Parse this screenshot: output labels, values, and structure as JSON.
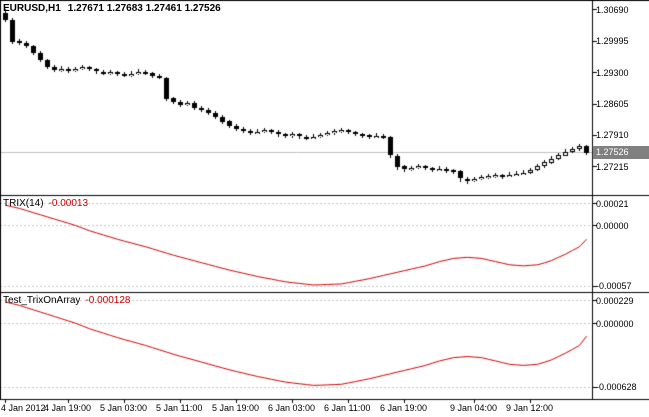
{
  "main_chart": {
    "title_symbol": "EURUSD,H1",
    "title_ohlc": "1.27671 1.27683 1.27461 1.27526",
    "current_price_label": "1.27526",
    "y_labels": [
      "1.30690",
      "1.29995",
      "1.29300",
      "1.28605",
      "1.27910",
      "1.27215"
    ]
  },
  "trix_panel": {
    "title": "TRIX(14)",
    "value": "-0.00013",
    "y_labels": [
      "0.00021",
      "0.00000",
      "-0.00057"
    ]
  },
  "trix_array_panel": {
    "title": "Test_TrixOnArray",
    "value": "-0.000128",
    "y_labels": [
      "0.000229",
      "0.000000",
      "-0.000628"
    ]
  },
  "time_axis": {
    "labels": [
      "4 Jan 2012",
      "4 Jan 19:00",
      "5 Jan 03:00",
      "5 Jan 11:00",
      "5 Jan 19:00",
      "6 Jan 03:00",
      "6 Jan 11:00",
      "6 Jan 19:00",
      "9 Jan 04:00",
      "9 Jan 12:00"
    ]
  },
  "colors": {
    "indicator_line": "#cc0000",
    "price_line": "#c0c0c0",
    "price_tag_bg": "#808080",
    "price_tag_text": "#ffffff",
    "grid_dash": "#c8c8c8",
    "bear_body": "#000000",
    "bull_body": "#ffffff",
    "axis_text": "#000000",
    "border": "#000000"
  },
  "chart_data": [
    {
      "type": "candlestick",
      "title": "EURUSD,H1",
      "period": "H1",
      "ohlc_current": {
        "open": 1.27671,
        "high": 1.27683,
        "low": 1.27461,
        "close": 1.27526
      },
      "current_price": 1.27526,
      "ylim": [
        1.26576,
        1.30878
      ],
      "y_ticks": [
        1.3069,
        1.29995,
        1.293,
        1.28605,
        1.2791,
        1.27215
      ],
      "x_labels": [
        "4 Jan 2012",
        "4 Jan 19:00",
        "5 Jan 03:00",
        "5 Jan 11:00",
        "5 Jan 19:00",
        "6 Jan 03:00",
        "6 Jan 11:00",
        "6 Jan 19:00",
        "9 Jan 04:00",
        "9 Jan 12:00"
      ],
      "x_label_bars": [
        0,
        9,
        17,
        25,
        33,
        41,
        49,
        57,
        67,
        75
      ],
      "candles": [
        [
          1.3062,
          1.3069,
          1.3042,
          1.3046
        ],
        [
          1.3046,
          1.305,
          1.2993,
          1.2998
        ],
        [
          1.2998,
          1.3003,
          1.299,
          1.2994
        ],
        [
          1.2994,
          1.2998,
          1.2984,
          1.2988
        ],
        [
          1.2988,
          1.2991,
          1.2968,
          1.2972
        ],
        [
          1.2972,
          1.2976,
          1.2952,
          1.2956
        ],
        [
          1.2956,
          1.296,
          1.2937,
          1.2941
        ],
        [
          1.2941,
          1.2946,
          1.2931,
          1.2935
        ],
        [
          1.2935,
          1.2943,
          1.2931,
          1.2938
        ],
        [
          1.2938,
          1.2942,
          1.2929,
          1.2933
        ],
        [
          1.2933,
          1.2942,
          1.293,
          1.2937
        ],
        [
          1.2937,
          1.2946,
          1.2934,
          1.2941
        ],
        [
          1.2941,
          1.2944,
          1.2932,
          1.2936
        ],
        [
          1.2936,
          1.294,
          1.2927,
          1.2931
        ],
        [
          1.2931,
          1.2935,
          1.2923,
          1.2927
        ],
        [
          1.2927,
          1.2935,
          1.2924,
          1.293
        ],
        [
          1.293,
          1.2933,
          1.2922,
          1.2926
        ],
        [
          1.2926,
          1.293,
          1.2919,
          1.2923
        ],
        [
          1.2923,
          1.2932,
          1.292,
          1.2927
        ],
        [
          1.2927,
          1.2936,
          1.2924,
          1.2931
        ],
        [
          1.2931,
          1.2934,
          1.2924,
          1.2928
        ],
        [
          1.2928,
          1.2931,
          1.2918,
          1.2922
        ],
        [
          1.2922,
          1.2926,
          1.2914,
          1.2918
        ],
        [
          1.2918,
          1.292,
          1.2865,
          1.2872
        ],
        [
          1.2872,
          1.2876,
          1.2859,
          1.2864
        ],
        [
          1.2864,
          1.2868,
          1.2853,
          1.2858
        ],
        [
          1.2858,
          1.2867,
          1.2855,
          1.2862
        ],
        [
          1.2862,
          1.2865,
          1.2846,
          1.2851
        ],
        [
          1.2851,
          1.2855,
          1.2841,
          1.2846
        ],
        [
          1.2846,
          1.285,
          1.2835,
          1.284
        ],
        [
          1.284,
          1.2844,
          1.2826,
          1.2831
        ],
        [
          1.2831,
          1.2835,
          1.2816,
          1.2821
        ],
        [
          1.2821,
          1.2825,
          1.2806,
          1.2811
        ],
        [
          1.2811,
          1.2815,
          1.2799,
          1.2804
        ],
        [
          1.2804,
          1.2809,
          1.2794,
          1.2799
        ],
        [
          1.2799,
          1.2803,
          1.279,
          1.2795
        ],
        [
          1.2795,
          1.2803,
          1.2792,
          1.2798
        ],
        [
          1.2798,
          1.2806,
          1.2795,
          1.2801
        ],
        [
          1.2801,
          1.2804,
          1.2792,
          1.2797
        ],
        [
          1.2797,
          1.2801,
          1.2787,
          1.2792
        ],
        [
          1.2792,
          1.2796,
          1.2783,
          1.2788
        ],
        [
          1.2788,
          1.2797,
          1.2785,
          1.2792
        ],
        [
          1.2792,
          1.2795,
          1.2782,
          1.2787
        ],
        [
          1.2787,
          1.2791,
          1.2779,
          1.2784
        ],
        [
          1.2784,
          1.2792,
          1.2781,
          1.2787
        ],
        [
          1.2787,
          1.2796,
          1.2784,
          1.2791
        ],
        [
          1.2791,
          1.2799,
          1.2788,
          1.2794
        ],
        [
          1.2794,
          1.2803,
          1.2791,
          1.2799
        ],
        [
          1.2799,
          1.2806,
          1.2796,
          1.2802
        ],
        [
          1.2802,
          1.2805,
          1.2792,
          1.2797
        ],
        [
          1.2797,
          1.28,
          1.2788,
          1.2793
        ],
        [
          1.2793,
          1.2796,
          1.2785,
          1.279
        ],
        [
          1.279,
          1.2793,
          1.2782,
          1.2787
        ],
        [
          1.2787,
          1.2795,
          1.2784,
          1.2789
        ],
        [
          1.2789,
          1.2792,
          1.2781,
          1.2786
        ],
        [
          1.2786,
          1.2788,
          1.2739,
          1.2745
        ],
        [
          1.2745,
          1.2748,
          1.2713,
          1.2721
        ],
        [
          1.2721,
          1.2725,
          1.2708,
          1.2714
        ],
        [
          1.2714,
          1.2723,
          1.2711,
          1.2718
        ],
        [
          1.2718,
          1.2727,
          1.2715,
          1.2721
        ],
        [
          1.2721,
          1.2724,
          1.2712,
          1.2717
        ],
        [
          1.2717,
          1.272,
          1.2709,
          1.2714
        ],
        [
          1.2714,
          1.2722,
          1.2711,
          1.2716
        ],
        [
          1.2716,
          1.2719,
          1.2707,
          1.2712
        ],
        [
          1.2712,
          1.2715,
          1.2704,
          1.271
        ],
        [
          1.271,
          1.2712,
          1.2687,
          1.2694
        ],
        [
          1.2694,
          1.2697,
          1.2682,
          1.2689
        ],
        [
          1.2689,
          1.2698,
          1.2686,
          1.2693
        ],
        [
          1.2693,
          1.2702,
          1.269,
          1.2697
        ],
        [
          1.2697,
          1.2705,
          1.2694,
          1.27
        ],
        [
          1.27,
          1.2707,
          1.2696,
          1.2702
        ],
        [
          1.2702,
          1.2705,
          1.2694,
          1.27
        ],
        [
          1.27,
          1.2708,
          1.2697,
          1.2703
        ],
        [
          1.2703,
          1.271,
          1.27,
          1.2705
        ],
        [
          1.2705,
          1.2712,
          1.2701,
          1.2707
        ],
        [
          1.2707,
          1.2718,
          1.2704,
          1.2713
        ],
        [
          1.2713,
          1.2726,
          1.271,
          1.2721
        ],
        [
          1.2721,
          1.2735,
          1.2718,
          1.273
        ],
        [
          1.273,
          1.2743,
          1.2727,
          1.2738
        ],
        [
          1.2738,
          1.2751,
          1.2735,
          1.2746
        ],
        [
          1.2746,
          1.2759,
          1.2743,
          1.2754
        ],
        [
          1.2754,
          1.2765,
          1.2751,
          1.276
        ],
        [
          1.276,
          1.277,
          1.2756,
          1.27671
        ],
        [
          1.27671,
          1.27683,
          1.27461,
          1.27526
        ]
      ]
    },
    {
      "type": "line",
      "name": "TRIX(14)",
      "last_value": -0.00013,
      "color": "#cc0000",
      "ylim": [
        -0.000626,
        0.000277
      ],
      "y_ticks": [
        0.00021,
        0,
        -0.00057
      ],
      "values": [
        0.00019,
        0.000175,
        0.00016,
        0.00014,
        0.00012,
        0.0001,
        8e-05,
        6e-05,
        4e-05,
        2e-05,
        0,
        -2.5e-05,
        -5e-05,
        -7e-05,
        -9e-05,
        -0.00011,
        -0.00013,
        -0.000148,
        -0.000165,
        -0.000183,
        -0.0002,
        -0.00022,
        -0.00024,
        -0.00026,
        -0.00028,
        -0.000298,
        -0.000315,
        -0.000333,
        -0.00035,
        -0.000368,
        -0.000385,
        -0.000403,
        -0.00042,
        -0.000435,
        -0.00045,
        -0.000465,
        -0.00048,
        -0.000493,
        -0.000505,
        -0.000518,
        -0.00053,
        -0.000538,
        -0.000545,
        -0.000553,
        -0.00056,
        -0.000558,
        -0.000555,
        -0.000553,
        -0.00055,
        -0.000538,
        -0.000525,
        -0.000513,
        -0.0005,
        -0.000485,
        -0.00047,
        -0.000455,
        -0.00044,
        -0.000425,
        -0.00041,
        -0.000395,
        -0.00038,
        -0.00036,
        -0.00034,
        -0.000325,
        -0.00031,
        -0.000305,
        -0.0003,
        -0.000305,
        -0.00031,
        -0.000325,
        -0.00034,
        -0.000355,
        -0.00037,
        -0.000375,
        -0.00038,
        -0.000375,
        -0.00037,
        -0.000352,
        -0.00033,
        -0.0003,
        -0.00027,
        -0.000235,
        -0.0002,
        -0.00013
      ]
    },
    {
      "type": "line",
      "name": "Test_TrixOnArray",
      "last_value": -0.000128,
      "color": "#cc0000",
      "ylim": [
        -0.000751,
        0.000299
      ],
      "y_ticks": [
        0.000229,
        0,
        -0.000628
      ],
      "values": [
        0.000209,
        0.000193,
        0.000176,
        0.000154,
        0.000132,
        0.00011,
        8.8e-05,
        6.6e-05,
        4.4e-05,
        2.2e-05,
        0,
        -2.75e-05,
        -5.5e-05,
        -7.7e-05,
        -9.9e-05,
        -0.000121,
        -0.000143,
        -0.000163,
        -0.000182,
        -0.000201,
        -0.00022,
        -0.000242,
        -0.000264,
        -0.000286,
        -0.000308,
        -0.000328,
        -0.000347,
        -0.000366,
        -0.000385,
        -0.000405,
        -0.000424,
        -0.000443,
        -0.000462,
        -0.000479,
        -0.000495,
        -0.000512,
        -0.000528,
        -0.000542,
        -0.000556,
        -0.00057,
        -0.000583,
        -0.000592,
        -0.0006,
        -0.000608,
        -0.000616,
        -0.000614,
        -0.000611,
        -0.000608,
        -0.000605,
        -0.000592,
        -0.000578,
        -0.000564,
        -0.00055,
        -0.000534,
        -0.000517,
        -0.000501,
        -0.000484,
        -0.000468,
        -0.000451,
        -0.000435,
        -0.000418,
        -0.000396,
        -0.000374,
        -0.000358,
        -0.000341,
        -0.000336,
        -0.00033,
        -0.000336,
        -0.000341,
        -0.000358,
        -0.000374,
        -0.000391,
        -0.000407,
        -0.000413,
        -0.000418,
        -0.000413,
        -0.000407,
        -0.000387,
        -0.000363,
        -0.00033,
        -0.000297,
        -0.000259,
        -0.00022,
        -0.000128
      ]
    }
  ]
}
